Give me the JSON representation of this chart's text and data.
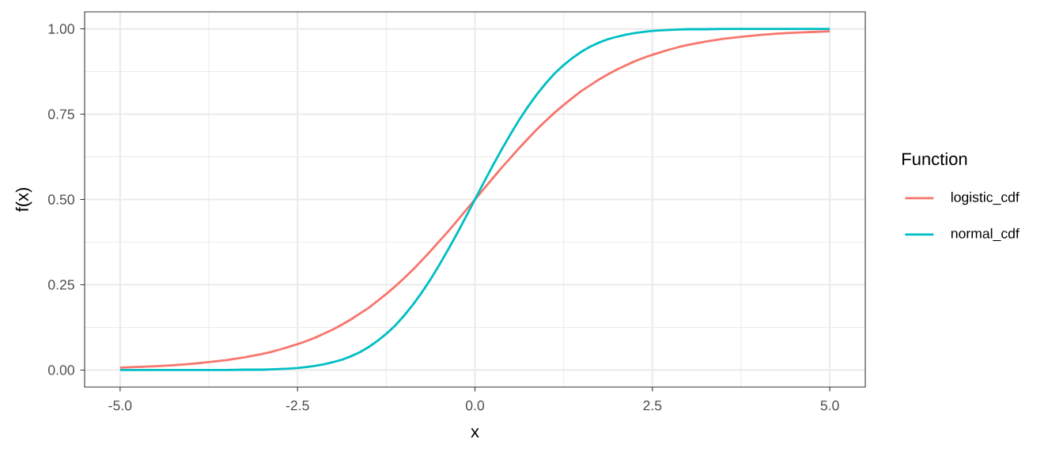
{
  "chart_data": {
    "type": "line",
    "xlabel": "x",
    "ylabel": "f(x)",
    "legend_title": "Function",
    "x": [
      -5,
      -4.75,
      -4.5,
      -4.25,
      -4,
      -3.75,
      -3.5,
      -3.25,
      -3,
      -2.875,
      -2.75,
      -2.625,
      -2.5,
      -2.375,
      -2.25,
      -2.125,
      -2,
      -1.875,
      -1.75,
      -1.625,
      -1.5,
      -1.375,
      -1.25,
      -1.125,
      -1,
      -0.875,
      -0.75,
      -0.625,
      -0.5,
      -0.375,
      -0.25,
      -0.125,
      0,
      0.125,
      0.25,
      0.375,
      0.5,
      0.625,
      0.75,
      0.875,
      1,
      1.125,
      1.25,
      1.375,
      1.5,
      1.625,
      1.75,
      1.875,
      2,
      2.125,
      2.25,
      2.375,
      2.5,
      2.625,
      2.75,
      2.875,
      3,
      3.25,
      3.5,
      3.75,
      4,
      4.25,
      4.5,
      4.75,
      5
    ],
    "series": [
      {
        "name": "logistic_cdf",
        "color": "#f8766d",
        "values": [
          0.007,
          0.009,
          0.011,
          0.014,
          0.018,
          0.023,
          0.029,
          0.037,
          0.047,
          0.053,
          0.06,
          0.068,
          0.076,
          0.085,
          0.095,
          0.107,
          0.119,
          0.133,
          0.148,
          0.165,
          0.182,
          0.202,
          0.223,
          0.245,
          0.269,
          0.294,
          0.321,
          0.349,
          0.378,
          0.407,
          0.438,
          0.469,
          0.5,
          0.531,
          0.562,
          0.593,
          0.622,
          0.651,
          0.679,
          0.706,
          0.731,
          0.755,
          0.777,
          0.798,
          0.818,
          0.835,
          0.852,
          0.867,
          0.881,
          0.893,
          0.905,
          0.915,
          0.924,
          0.932,
          0.94,
          0.947,
          0.953,
          0.963,
          0.971,
          0.977,
          0.982,
          0.986,
          0.989,
          0.991,
          0.993
        ]
      },
      {
        "name": "normal_cdf",
        "color": "#00bfc4",
        "values": [
          0.0,
          0.0,
          0.0,
          0.0,
          0.0,
          0.0,
          0.0,
          0.001,
          0.001,
          0.002,
          0.003,
          0.004,
          0.006,
          0.009,
          0.012,
          0.017,
          0.023,
          0.03,
          0.04,
          0.052,
          0.067,
          0.085,
          0.106,
          0.13,
          0.159,
          0.191,
          0.227,
          0.266,
          0.309,
          0.354,
          0.401,
          0.45,
          0.5,
          0.55,
          0.599,
          0.646,
          0.691,
          0.734,
          0.773,
          0.809,
          0.841,
          0.87,
          0.894,
          0.915,
          0.933,
          0.948,
          0.96,
          0.97,
          0.977,
          0.983,
          0.988,
          0.991,
          0.994,
          0.996,
          0.997,
          0.998,
          0.999,
          0.999,
          1.0,
          1.0,
          1.0,
          1.0,
          1.0,
          1.0,
          1.0
        ]
      }
    ],
    "xlim": [
      -5.5,
      5.5
    ],
    "ylim": [
      -0.05,
      1.05
    ],
    "xticks": [
      {
        "value": -5,
        "label": "-5.0"
      },
      {
        "value": -2.5,
        "label": "-2.5"
      },
      {
        "value": 0,
        "label": "0.0"
      },
      {
        "value": 2.5,
        "label": "2.5"
      },
      {
        "value": 5,
        "label": "5.0"
      }
    ],
    "yticks": [
      {
        "value": 0,
        "label": "0.00"
      },
      {
        "value": 0.25,
        "label": "0.25"
      },
      {
        "value": 0.5,
        "label": "0.50"
      },
      {
        "value": 0.75,
        "label": "0.75"
      },
      {
        "value": 1,
        "label": "1.00"
      }
    ],
    "grid": true,
    "legend": "right",
    "line_style": "solid"
  }
}
